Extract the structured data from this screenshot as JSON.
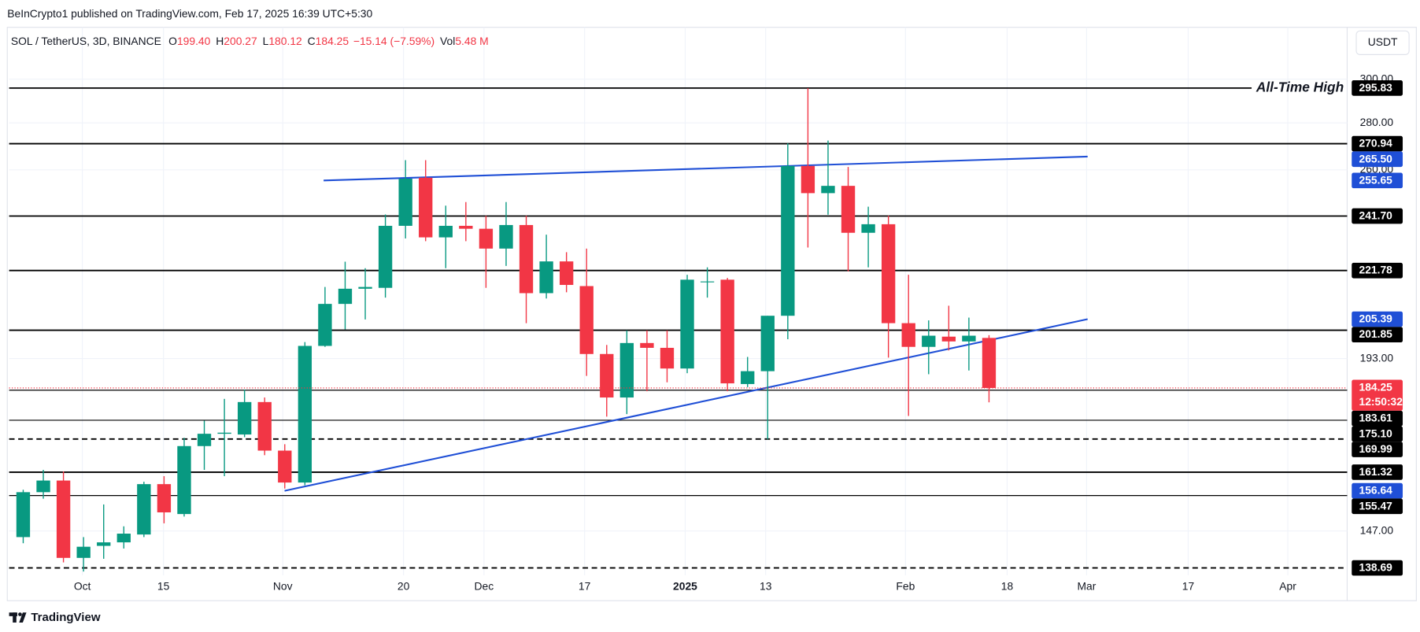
{
  "header": {
    "published": "BeInCrypto1 published on TradingView.com, Feb 17, 2025 16:39 UTC+5:30"
  },
  "chart_data": {
    "type": "candlestick",
    "legend": [
      {
        "text": "SOL / TetherUS, 3D, BINANCE",
        "color": "#131722"
      },
      {
        "text": "O",
        "color": "#131722"
      },
      {
        "text": "199.40",
        "color": "#f23645"
      },
      {
        "text": "H",
        "color": "#131722"
      },
      {
        "text": "200.27",
        "color": "#f23645"
      },
      {
        "text": "L",
        "color": "#131722"
      },
      {
        "text": "180.12",
        "color": "#f23645"
      },
      {
        "text": "C",
        "color": "#131722"
      },
      {
        "text": "184.25",
        "color": "#f23645"
      },
      {
        "text": "−15.14 (−7.59%)",
        "color": "#f23645"
      },
      {
        "text": "Vol",
        "color": "#131722"
      },
      {
        "text": "5.48 M",
        "color": "#f23645"
      }
    ],
    "currency": "USDT",
    "up_color": "#089981",
    "down_color": "#f23645",
    "x": [
      0,
      1,
      2,
      3,
      4,
      5,
      6,
      7,
      8,
      9,
      10,
      11,
      12,
      13,
      14,
      15,
      16,
      17,
      18,
      19,
      20,
      21,
      22,
      23,
      24,
      25,
      26,
      27,
      28,
      29,
      30,
      31,
      32,
      33,
      34,
      35,
      36,
      37,
      38,
      39,
      40,
      41,
      42,
      43,
      44,
      45,
      46,
      47,
      48
    ],
    "open": [
      145.6,
      156.3,
      159.2,
      140.9,
      143.6,
      144.4,
      146.2,
      158.3,
      151.0,
      168.1,
      171.4,
      171.2,
      180.2,
      166.9,
      158.7,
      196.9,
      210.4,
      215.5,
      215.8,
      238.0,
      256.8,
      233.7,
      238.0,
      236.9,
      229.6,
      238.3,
      214.0,
      225.0,
      216.4,
      194.4,
      181.5,
      197.8,
      196.3,
      190.0,
      217.7,
      218.6,
      185.4,
      189.2,
      206.5,
      261.6,
      250.6,
      253.5,
      235.4,
      238.6,
      204.1,
      196.6,
      199.8,
      198.3,
      199.4
    ],
    "high": [
      156.9,
      161.9,
      161.5,
      145.6,
      153.3,
      148.1,
      158.9,
      160.3,
      170.3,
      175.0,
      181.1,
      183.8,
      181.5,
      168.6,
      198.1,
      216.1,
      224.9,
      222.6,
      242.3,
      264.0,
      264.0,
      245.7,
      247.1,
      241.8,
      247.1,
      241.8,
      234.7,
      228.3,
      229.6,
      197.2,
      201.8,
      201.8,
      201.8,
      220.3,
      222.9,
      219.2,
      193.5,
      206.5,
      271.1,
      295.8,
      272.3,
      261.2,
      245.3,
      241.8,
      220.3,
      205.0,
      209.8,
      205.9,
      200.27
    ],
    "low": [
      144.2,
      154.7,
      139.9,
      137.9,
      140.7,
      143.0,
      145.6,
      148.8,
      150.4,
      161.9,
      160.3,
      170.5,
      165.7,
      157.2,
      158.0,
      196.6,
      202.1,
      205.3,
      212.5,
      233.3,
      232.3,
      222.6,
      232.3,
      215.8,
      223.4,
      204.1,
      212.2,
      214.3,
      187.8,
      176.1,
      176.8,
      183.3,
      185.9,
      188.6,
      212.5,
      183.3,
      184.5,
      169.9,
      199.0,
      230.0,
      242.2,
      221.5,
      222.9,
      193.3,
      176.3,
      188.3,
      195.5,
      189.4,
      180.12
    ],
    "close": [
      156.3,
      159.2,
      140.9,
      143.4,
      144.4,
      146.4,
      158.3,
      151.4,
      168.1,
      171.4,
      171.7,
      180.2,
      166.9,
      158.7,
      196.9,
      210.4,
      215.5,
      216.1,
      238.0,
      256.4,
      233.7,
      238.0,
      236.9,
      229.6,
      238.3,
      214.0,
      225.0,
      216.8,
      194.4,
      181.5,
      197.8,
      196.3,
      190.0,
      218.6,
      218.0,
      185.6,
      189.2,
      206.5,
      261.6,
      250.6,
      253.5,
      235.4,
      238.6,
      204.1,
      196.6,
      200.1,
      198.3,
      200.1,
      184.25
    ],
    "xlim": [
      -0.7,
      65.8
    ],
    "xticks": [
      {
        "value": 2.94,
        "label": "Oct"
      },
      {
        "value": 6.97,
        "label": "15"
      },
      {
        "value": 12.9,
        "label": "Nov"
      },
      {
        "value": 18.9,
        "label": "20"
      },
      {
        "value": 22.9,
        "label": "Dec"
      },
      {
        "value": 27.9,
        "label": "17"
      },
      {
        "value": 32.9,
        "label": "2025",
        "bold": true
      },
      {
        "value": 36.9,
        "label": "13"
      },
      {
        "value": 43.85,
        "label": "Feb"
      },
      {
        "value": 48.9,
        "label": "18"
      },
      {
        "value": 52.85,
        "label": "Mar"
      },
      {
        "value": 57.9,
        "label": "17"
      },
      {
        "value": 62.85,
        "label": "Apr"
      }
    ],
    "ylim": [
      137.1,
      325.6
    ],
    "log_scale": true,
    "grid": true,
    "yticks": [
      {
        "value": 300,
        "label": "300.00"
      },
      {
        "value": 280,
        "label": "280.00"
      },
      {
        "value": 260,
        "label": "260.00"
      },
      {
        "value": 193,
        "label": "193.00"
      },
      {
        "value": 147,
        "label": "147.00"
      }
    ],
    "levels": [
      {
        "value": 295.83,
        "label": "295.83",
        "style": "solid",
        "annotation": "All-Time High"
      },
      {
        "value": 270.94,
        "label": "270.94",
        "style": "solid"
      },
      {
        "value": 241.7,
        "label": "241.70",
        "style": "solid"
      },
      {
        "value": 221.78,
        "label": "221.78",
        "style": "solid"
      },
      {
        "value": 201.85,
        "label": "201.85",
        "style": "solid"
      },
      {
        "value": 183.61,
        "label": "183.61",
        "style": "thin"
      },
      {
        "value": 175.1,
        "label": "175.10",
        "style": "thin"
      },
      {
        "value": 169.99,
        "label": "169.99",
        "style": "dashed"
      },
      {
        "value": 161.32,
        "label": "161.32",
        "style": "solid"
      },
      {
        "value": 155.47,
        "label": "155.47",
        "style": "thin"
      },
      {
        "value": 138.69,
        "label": "138.69",
        "style": "dashed"
      }
    ],
    "level_color": "#000000",
    "trendlines": [
      {
        "x": [
          14.93,
          52.9
        ],
        "y": [
          {
            "value": 255.65,
            "label": "255.65"
          },
          {
            "value": 265.5,
            "label": "265.50"
          }
        ]
      },
      {
        "x": [
          12.99,
          52.9
        ],
        "y": [
          {
            "value": 156.64,
            "label": "156.64"
          },
          {
            "value": 205.39,
            "label": "205.39"
          }
        ]
      }
    ],
    "trendline_color": "#1f4fd6",
    "last_price": {
      "value": 184.25,
      "label": "184.25",
      "countdown": "12:50:32",
      "color": "#f23645"
    }
  },
  "footer": {
    "brand": "TradingView"
  }
}
